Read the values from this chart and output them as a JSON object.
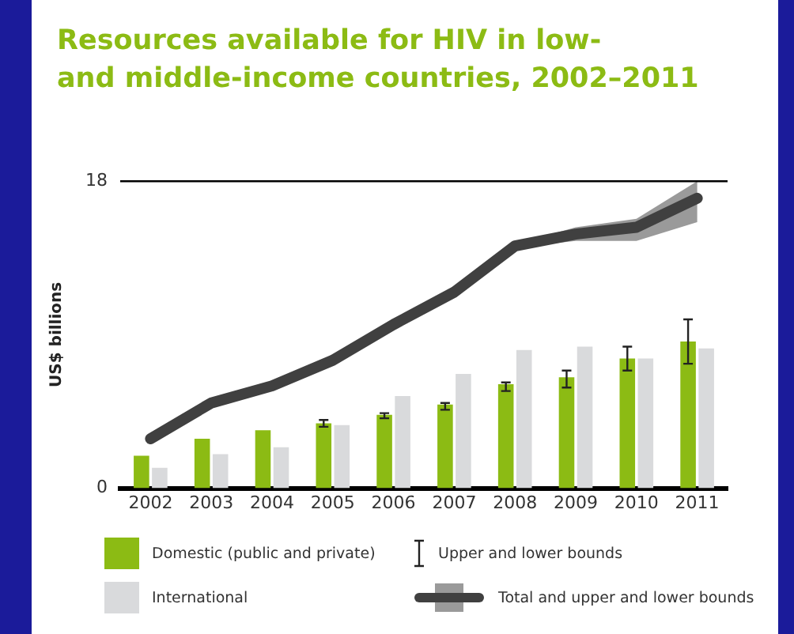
{
  "chart_data": {
    "type": "bar",
    "title": "Resources available for HIV in low-\nand middle-income countries, 2002–2011",
    "ylabel": "US$ billions",
    "categories": [
      "2002",
      "2003",
      "2004",
      "2005",
      "2006",
      "2007",
      "2008",
      "2009",
      "2010",
      "2011"
    ],
    "ylim": [
      0,
      18
    ],
    "yticks": [
      0,
      18
    ],
    "ref_lines": [
      {
        "axis": "y",
        "value": 18,
        "color": "#000000"
      }
    ],
    "legend": "bottom",
    "annotations": [
      "Upper and lower bounds"
    ],
    "series": [
      {
        "name": "Domestic (public and private)",
        "color": "#8cbb14",
        "values": [
          1.9,
          2.9,
          3.4,
          3.8,
          4.3,
          4.9,
          6.1,
          6.5,
          7.6,
          8.6
        ],
        "errors": [
          null,
          null,
          null,
          [
            3.6,
            4.0
          ],
          [
            4.1,
            4.4
          ],
          [
            4.6,
            5.0
          ],
          [
            5.7,
            6.2
          ],
          [
            5.9,
            6.9
          ],
          [
            6.9,
            8.3
          ],
          [
            7.3,
            9.9
          ]
        ]
      },
      {
        "name": "International",
        "color": "#d9dadc",
        "values": [
          1.2,
          2.0,
          2.4,
          3.7,
          5.4,
          6.7,
          8.1,
          8.3,
          7.6,
          8.2
        ]
      },
      {
        "name": "Total and upper and lower bounds",
        "type": "line",
        "color": "#404040",
        "values": [
          2.9,
          5.0,
          6.0,
          7.5,
          9.6,
          11.5,
          14.2,
          14.9,
          15.3,
          17.0
        ],
        "lower": [
          null,
          null,
          null,
          null,
          null,
          null,
          14.1,
          14.5,
          14.5,
          15.6
        ],
        "upper": [
          null,
          null,
          null,
          null,
          null,
          null,
          14.3,
          15.3,
          15.8,
          18.0
        ]
      }
    ]
  }
}
